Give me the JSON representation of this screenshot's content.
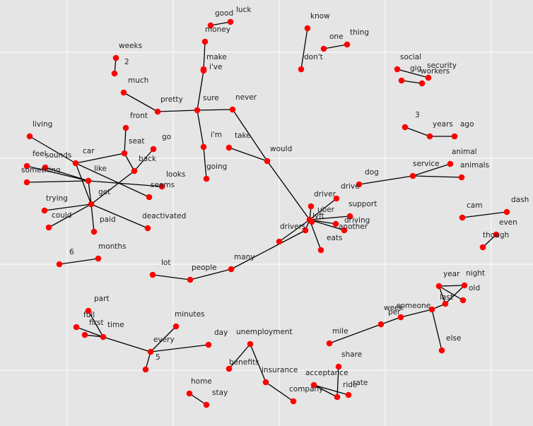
{
  "colors": {
    "background": "#e5e5e5",
    "grid": "#ffffff",
    "node": "#ff0000",
    "edge": "#000000",
    "label": "#222222"
  },
  "nodes": [
    {
      "id": "good",
      "label": "good"
    },
    {
      "id": "luck",
      "label": "luck"
    },
    {
      "id": "money",
      "label": "money"
    },
    {
      "id": "make",
      "label": "make"
    },
    {
      "id": "i've",
      "label": "i've"
    },
    {
      "id": "sure",
      "label": "sure"
    },
    {
      "id": "pretty",
      "label": "pretty"
    },
    {
      "id": "much",
      "label": "much"
    },
    {
      "id": "never",
      "label": "never"
    },
    {
      "id": "i'm",
      "label": "i'm"
    },
    {
      "id": "going",
      "label": "going"
    },
    {
      "id": "take",
      "label": "take"
    },
    {
      "id": "would",
      "label": "would"
    },
    {
      "id": "weeks",
      "label": "weeks"
    },
    {
      "id": "2",
      "label": "2"
    },
    {
      "id": "know",
      "label": "know"
    },
    {
      "id": "don't",
      "label": "don't"
    },
    {
      "id": "one",
      "label": "one"
    },
    {
      "id": "thing",
      "label": "thing"
    },
    {
      "id": "social",
      "label": "social"
    },
    {
      "id": "gig",
      "label": "gig"
    },
    {
      "id": "security",
      "label": "security"
    },
    {
      "id": "workers",
      "label": "workers"
    },
    {
      "id": "3",
      "label": "3"
    },
    {
      "id": "years",
      "label": "years"
    },
    {
      "id": "ago",
      "label": "ago"
    },
    {
      "id": "living",
      "label": "living"
    },
    {
      "id": "front",
      "label": "front"
    },
    {
      "id": "go",
      "label": "go"
    },
    {
      "id": "seat",
      "label": "seat"
    },
    {
      "id": "car",
      "label": "car"
    },
    {
      "id": "back",
      "label": "back"
    },
    {
      "id": "feel",
      "label": "feel"
    },
    {
      "id": "sounds",
      "label": "sounds"
    },
    {
      "id": "something",
      "label": "something"
    },
    {
      "id": "like",
      "label": "like"
    },
    {
      "id": "looks",
      "label": "looks"
    },
    {
      "id": "seems",
      "label": "seems"
    },
    {
      "id": "get",
      "label": "get"
    },
    {
      "id": "trying",
      "label": "trying"
    },
    {
      "id": "could",
      "label": "could"
    },
    {
      "id": "paid",
      "label": "paid"
    },
    {
      "id": "deactivated",
      "label": "deactivated"
    },
    {
      "id": "animal",
      "label": "animal"
    },
    {
      "id": "service",
      "label": "service"
    },
    {
      "id": "animals",
      "label": "animals"
    },
    {
      "id": "dog",
      "label": "dog"
    },
    {
      "id": "drive",
      "label": "drive"
    },
    {
      "id": "driver",
      "label": "driver"
    },
    {
      "id": "uber",
      "label": "uber"
    },
    {
      "id": "lyft",
      "label": "lyft"
    },
    {
      "id": "support",
      "label": "support"
    },
    {
      "id": "driving",
      "label": "driving"
    },
    {
      "id": "another",
      "label": "another"
    },
    {
      "id": "eats",
      "label": "eats"
    },
    {
      "id": "drivers",
      "label": "drivers"
    },
    {
      "id": "cam",
      "label": "cam"
    },
    {
      "id": "dash",
      "label": "dash"
    },
    {
      "id": "even",
      "label": "even"
    },
    {
      "id": "though",
      "label": "though"
    },
    {
      "id": "6",
      "label": "6"
    },
    {
      "id": "months",
      "label": "months"
    },
    {
      "id": "lot",
      "label": "lot"
    },
    {
      "id": "people",
      "label": "people"
    },
    {
      "id": "many",
      "label": "many"
    },
    {
      "id": "year",
      "label": "year"
    },
    {
      "id": "night",
      "label": "night"
    },
    {
      "id": "old",
      "label": "old"
    },
    {
      "id": "last",
      "label": "last"
    },
    {
      "id": "someone",
      "label": "someone"
    },
    {
      "id": "week",
      "label": "week"
    },
    {
      "id": "else",
      "label": "else"
    },
    {
      "id": "per",
      "label": "per"
    },
    {
      "id": "mile",
      "label": "mile"
    },
    {
      "id": "part",
      "label": "part"
    },
    {
      "id": "full",
      "label": "full"
    },
    {
      "id": "first",
      "label": "first"
    },
    {
      "id": "time",
      "label": "time"
    },
    {
      "id": "minutes",
      "label": "minutes"
    },
    {
      "id": "day",
      "label": "day"
    },
    {
      "id": "every",
      "label": "every"
    },
    {
      "id": "5",
      "label": "5"
    },
    {
      "id": "unemployment",
      "label": "unemployment"
    },
    {
      "id": "benefits",
      "label": "benefits"
    },
    {
      "id": "insurance",
      "label": "insurance"
    },
    {
      "id": "company",
      "label": "company"
    },
    {
      "id": "share",
      "label": "share"
    },
    {
      "id": "acceptance",
      "label": "acceptance"
    },
    {
      "id": "ride",
      "label": "ride"
    },
    {
      "id": "rate",
      "label": "rate"
    },
    {
      "id": "home",
      "label": "home"
    },
    {
      "id": "stay",
      "label": "stay"
    }
  ],
  "edges": [
    [
      "good",
      "luck"
    ],
    [
      "money",
      "i've"
    ],
    [
      "make",
      "i've"
    ],
    [
      "i've",
      "sure"
    ],
    [
      "sure",
      "pretty"
    ],
    [
      "pretty",
      "much"
    ],
    [
      "sure",
      "i'm"
    ],
    [
      "i'm",
      "going"
    ],
    [
      "sure",
      "never"
    ],
    [
      "never",
      "would"
    ],
    [
      "take",
      "would"
    ],
    [
      "would",
      "lyft"
    ],
    [
      "weeks",
      "2"
    ],
    [
      "know",
      "don't"
    ],
    [
      "one",
      "thing"
    ],
    [
      "social",
      "security"
    ],
    [
      "gig",
      "workers"
    ],
    [
      "3",
      "years"
    ],
    [
      "years",
      "ago"
    ],
    [
      "living",
      "car"
    ],
    [
      "car",
      "seat"
    ],
    [
      "seat",
      "front"
    ],
    [
      "seat",
      "back"
    ],
    [
      "back",
      "go"
    ],
    [
      "back",
      "get"
    ],
    [
      "car",
      "get"
    ],
    [
      "car",
      "seems"
    ],
    [
      "feel",
      "like"
    ],
    [
      "sounds",
      "like"
    ],
    [
      "something",
      "like"
    ],
    [
      "like",
      "looks"
    ],
    [
      "like",
      "get"
    ],
    [
      "get",
      "trying"
    ],
    [
      "get",
      "could"
    ],
    [
      "get",
      "paid"
    ],
    [
      "get",
      "deactivated"
    ],
    [
      "animal",
      "service"
    ],
    [
      "service",
      "animals"
    ],
    [
      "service",
      "dog"
    ],
    [
      "lyft",
      "drive"
    ],
    [
      "lyft",
      "driver"
    ],
    [
      "lyft",
      "uber"
    ],
    [
      "lyft",
      "support"
    ],
    [
      "lyft",
      "driving"
    ],
    [
      "lyft",
      "another"
    ],
    [
      "lyft",
      "eats"
    ],
    [
      "lyft",
      "drivers"
    ],
    [
      "lyft",
      "extra"
    ],
    [
      "drivers",
      "many"
    ],
    [
      "many",
      "people"
    ],
    [
      "people",
      "lot"
    ],
    [
      "cam",
      "dash"
    ],
    [
      "even",
      "though"
    ],
    [
      "6",
      "months"
    ],
    [
      "year",
      "night"
    ],
    [
      "year",
      "old"
    ],
    [
      "year",
      "last"
    ],
    [
      "last",
      "night"
    ],
    [
      "last",
      "someone"
    ],
    [
      "someone",
      "week"
    ],
    [
      "someone",
      "else"
    ],
    [
      "week",
      "per"
    ],
    [
      "per",
      "mile"
    ],
    [
      "part",
      "time"
    ],
    [
      "full",
      "time"
    ],
    [
      "first",
      "time"
    ],
    [
      "time",
      "every"
    ],
    [
      "every",
      "day"
    ],
    [
      "every",
      "minutes"
    ],
    [
      "every",
      "5"
    ],
    [
      "unemployment",
      "benefits"
    ],
    [
      "unemployment",
      "insurance"
    ],
    [
      "insurance",
      "company"
    ],
    [
      "share",
      "ride"
    ],
    [
      "acceptance",
      "rate"
    ],
    [
      "acceptance",
      "ride"
    ],
    [
      "home",
      "stay"
    ]
  ]
}
